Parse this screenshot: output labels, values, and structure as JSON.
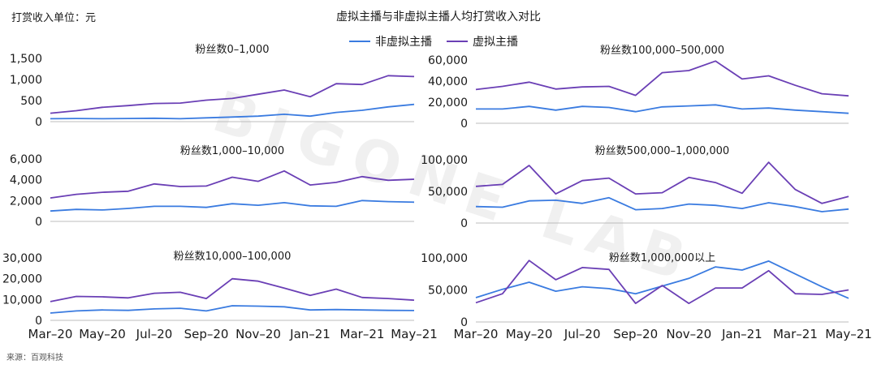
{
  "header": {
    "unit_label": "打赏收入单位：元",
    "title": "虚拟主播与非虚拟主播人均打赏收入对比"
  },
  "legend": [
    {
      "name": "非虚拟主播",
      "color": "#3a7be0"
    },
    {
      "name": "虚拟主播",
      "color": "#6a3fb5"
    }
  ],
  "watermark": "BIGONE LAB",
  "footer": {
    "source": "来源：百观科技"
  },
  "x_tick_labels": [
    "Mar–20",
    "May–20",
    "Jul–20",
    "Sep–20",
    "Nov–20",
    "Jan–21",
    "Mar–21",
    "May–21"
  ],
  "chart_data": [
    {
      "type": "line",
      "title": "粉丝数0–1,000",
      "x": [
        "Mar-20",
        "Apr-20",
        "May-20",
        "Jun-20",
        "Jul-20",
        "Aug-20",
        "Sep-20",
        "Oct-20",
        "Nov-20",
        "Dec-20",
        "Jan-21",
        "Feb-21",
        "Mar-21",
        "Apr-21",
        "May-21"
      ],
      "ylim": [
        0,
        1500
      ],
      "yticks": [
        0,
        500,
        1000,
        1500
      ],
      "ytick_labels": [
        "0",
        "500",
        "1,000",
        "1,500"
      ],
      "grid": false,
      "series": [
        {
          "name": "非虚拟主播",
          "values": [
            70,
            75,
            70,
            75,
            80,
            70,
            90,
            110,
            130,
            175,
            130,
            220,
            270,
            350,
            410
          ]
        },
        {
          "name": "虚拟主播",
          "values": [
            200,
            260,
            340,
            380,
            430,
            440,
            510,
            550,
            650,
            750,
            590,
            900,
            880,
            1090,
            1070
          ]
        }
      ]
    },
    {
      "type": "line",
      "title": "粉丝数100,000–500,000",
      "x": [
        "Mar-20",
        "Apr-20",
        "May-20",
        "Jun-20",
        "Jul-20",
        "Aug-20",
        "Sep-20",
        "Oct-20",
        "Nov-20",
        "Dec-20",
        "Jan-21",
        "Feb-21",
        "Mar-21",
        "Apr-21",
        "May-21"
      ],
      "ylim": [
        0,
        60000
      ],
      "yticks": [
        0,
        20000,
        40000,
        60000
      ],
      "ytick_labels": [
        "0",
        "20,000",
        "40,000",
        "60,000"
      ],
      "grid": false,
      "series": [
        {
          "name": "非虚拟主播",
          "values": [
            13500,
            13500,
            16000,
            12500,
            16000,
            15000,
            11000,
            15500,
            16500,
            17500,
            13500,
            14500,
            12500,
            11000,
            9500
          ]
        },
        {
          "name": "虚拟主播",
          "values": [
            32000,
            35000,
            39000,
            32500,
            34500,
            35000,
            26500,
            48000,
            50000,
            59000,
            42000,
            45000,
            36000,
            28000,
            26000
          ]
        }
      ]
    },
    {
      "type": "line",
      "title": "粉丝数1,000–10,000",
      "x": [
        "Mar-20",
        "Apr-20",
        "May-20",
        "Jun-20",
        "Jul-20",
        "Aug-20",
        "Sep-20",
        "Oct-20",
        "Nov-20",
        "Dec-20",
        "Jan-21",
        "Feb-21",
        "Mar-21",
        "Apr-21",
        "May-21"
      ],
      "ylim": [
        0,
        6000
      ],
      "yticks": [
        0,
        2000,
        4000,
        6000
      ],
      "ytick_labels": [
        "0",
        "2,000",
        "4,000",
        "6,000"
      ],
      "grid": false,
      "series": [
        {
          "name": "非虚拟主播",
          "values": [
            1000,
            1150,
            1100,
            1250,
            1450,
            1450,
            1350,
            1700,
            1550,
            1800,
            1500,
            1450,
            2000,
            1900,
            1850
          ]
        },
        {
          "name": "虚拟主播",
          "values": [
            2250,
            2600,
            2800,
            2900,
            3600,
            3350,
            3400,
            4250,
            3850,
            4850,
            3500,
            3750,
            4300,
            3950,
            4050
          ]
        }
      ]
    },
    {
      "type": "line",
      "title": "粉丝数500,000–1,000,000",
      "x": [
        "Mar-20",
        "Apr-20",
        "May-20",
        "Jun-20",
        "Jul-20",
        "Aug-20",
        "Sep-20",
        "Oct-20",
        "Nov-20",
        "Dec-20",
        "Jan-21",
        "Feb-21",
        "Mar-21",
        "Apr-21",
        "May-21"
      ],
      "ylim": [
        0,
        100000
      ],
      "yticks": [
        0,
        50000,
        100000
      ],
      "ytick_labels": [
        "0",
        "50,000",
        "100,000"
      ],
      "grid": false,
      "series": [
        {
          "name": "非虚拟主播",
          "values": [
            26000,
            25000,
            35000,
            36000,
            31000,
            40000,
            21000,
            23000,
            30000,
            28000,
            23000,
            32000,
            26000,
            18000,
            22000
          ]
        },
        {
          "name": "虚拟主播",
          "values": [
            58000,
            61000,
            91000,
            46000,
            67000,
            71000,
            46000,
            48000,
            72000,
            64000,
            47000,
            96000,
            53000,
            31000,
            42000
          ]
        }
      ]
    },
    {
      "type": "line",
      "title": "粉丝数10,000–100,000",
      "x": [
        "Mar-20",
        "Apr-20",
        "May-20",
        "Jun-20",
        "Jul-20",
        "Aug-20",
        "Sep-20",
        "Oct-20",
        "Nov-20",
        "Dec-20",
        "Jan-21",
        "Feb-21",
        "Mar-21",
        "Apr-21",
        "May-21"
      ],
      "ylim": [
        0,
        30000
      ],
      "yticks": [
        0,
        10000,
        20000,
        30000
      ],
      "ytick_labels": [
        "0",
        "10,000",
        "20,000",
        "30,000"
      ],
      "grid": false,
      "series": [
        {
          "name": "非虚拟主播",
          "values": [
            3500,
            4500,
            5000,
            4800,
            5500,
            5800,
            4500,
            7000,
            6800,
            6500,
            5000,
            5200,
            5000,
            4800,
            4700
          ]
        },
        {
          "name": "虚拟主播",
          "values": [
            9000,
            11500,
            11300,
            10800,
            13000,
            13500,
            10500,
            20000,
            18800,
            15500,
            12000,
            15000,
            11000,
            10500,
            9700
          ]
        }
      ]
    },
    {
      "type": "line",
      "title": "粉丝数1,000,000以上",
      "x": [
        "Mar-20",
        "Apr-20",
        "May-20",
        "Jun-20",
        "Jul-20",
        "Aug-20",
        "Sep-20",
        "Oct-20",
        "Nov-20",
        "Dec-20",
        "Jan-21",
        "Feb-21",
        "Mar-21",
        "Apr-21",
        "May-21"
      ],
      "ylim": [
        0,
        100000
      ],
      "yticks": [
        0,
        50000,
        100000
      ],
      "ytick_labels": [
        "0",
        "50,000",
        "100,000"
      ],
      "grid": false,
      "series": [
        {
          "name": "非虚拟主播",
          "values": [
            38000,
            51000,
            62000,
            48000,
            55000,
            52000,
            44000,
            56000,
            68000,
            86000,
            81000,
            95000,
            75000,
            55000,
            37000
          ]
        },
        {
          "name": "虚拟主播",
          "values": [
            30000,
            44000,
            96000,
            66000,
            85000,
            82000,
            29000,
            57000,
            29000,
            53000,
            53000,
            80000,
            44000,
            43000,
            50000
          ]
        }
      ]
    }
  ]
}
